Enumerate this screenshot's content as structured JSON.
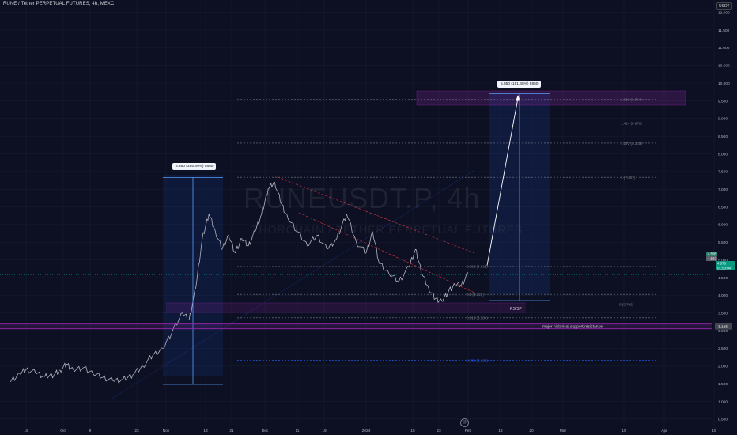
{
  "header": {
    "symbol_title": "RUNE / Tether PERPETUAL FUTURES, 4h, MEXC",
    "quote_currency": "USDT"
  },
  "watermark": {
    "symbol": "RUNEUSDT.P, 4h",
    "description": "THORCHAIN / TETHER PERPETUAL FUTURES"
  },
  "chart_data": {
    "type": "line",
    "title": "RUNE / Tether PERPETUAL FUTURES, 4h, MEXC",
    "xlabel": "",
    "ylabel": "",
    "y_axis_side": "right",
    "ylim": [
      0.25,
      12.15
    ],
    "y_ticks": [
      "12.000",
      "11.500",
      "11.000",
      "10.500",
      "10.000",
      "9.500",
      "9.000",
      "8.500",
      "8.000",
      "7.500",
      "7.000",
      "6.500",
      "6.000",
      "5.500",
      "5.000",
      "4.500",
      "4.000",
      "3.500",
      "3.000",
      "2.500",
      "2.000",
      "1.500",
      "1.000",
      "0.500"
    ],
    "x_ticks": [
      "19",
      "Oct",
      "9",
      "23",
      "Nov",
      "13",
      "21",
      "Dec",
      "11",
      "19",
      "2024",
      "15",
      "23",
      "Feb",
      "12",
      "20",
      "Mar",
      "19",
      "Apr",
      "15"
    ],
    "price_points": [
      {
        "x": "Sep 14",
        "y": 1.55
      },
      {
        "x": "Sep 17",
        "y": 1.78
      },
      {
        "x": "Sep 19",
        "y": 1.9
      },
      {
        "x": "Sep 22",
        "y": 1.82
      },
      {
        "x": "Sep 25",
        "y": 1.7
      },
      {
        "x": "Sep 28",
        "y": 1.75
      },
      {
        "x": "Sep 30",
        "y": 1.88
      },
      {
        "x": "Oct 2",
        "y": 2.05
      },
      {
        "x": "Oct 4",
        "y": 1.9
      },
      {
        "x": "Oct 7",
        "y": 1.95
      },
      {
        "x": "Oct 10",
        "y": 1.78
      },
      {
        "x": "Oct 13",
        "y": 1.68
      },
      {
        "x": "Oct 16",
        "y": 1.58
      },
      {
        "x": "Oct 19",
        "y": 1.62
      },
      {
        "x": "Oct 22",
        "y": 1.75
      },
      {
        "x": "Oct 25",
        "y": 2.0
      },
      {
        "x": "Oct 28",
        "y": 2.3
      },
      {
        "x": "Oct 31",
        "y": 2.5
      },
      {
        "x": "Nov 3",
        "y": 3.0
      },
      {
        "x": "Nov 6",
        "y": 3.5
      },
      {
        "x": "Nov 8",
        "y": 3.3
      },
      {
        "x": "Nov 10",
        "y": 4.2
      },
      {
        "x": "Nov 12",
        "y": 5.6
      },
      {
        "x": "Nov 14",
        "y": 6.3
      },
      {
        "x": "Nov 16",
        "y": 5.8
      },
      {
        "x": "Nov 18",
        "y": 5.3
      },
      {
        "x": "Nov 20",
        "y": 5.7
      },
      {
        "x": "Nov 22",
        "y": 5.2
      },
      {
        "x": "Nov 24",
        "y": 5.6
      },
      {
        "x": "Nov 26",
        "y": 5.4
      },
      {
        "x": "Nov 28",
        "y": 5.8
      },
      {
        "x": "Nov 30",
        "y": 6.3
      },
      {
        "x": "Dec 2",
        "y": 7.0
      },
      {
        "x": "Dec 4",
        "y": 7.2
      },
      {
        "x": "Dec 6",
        "y": 6.6
      },
      {
        "x": "Dec 8",
        "y": 6.2
      },
      {
        "x": "Dec 11",
        "y": 5.8
      },
      {
        "x": "Dec 14",
        "y": 5.4
      },
      {
        "x": "Dec 17",
        "y": 5.7
      },
      {
        "x": "Dec 20",
        "y": 5.3
      },
      {
        "x": "Dec 23",
        "y": 5.6
      },
      {
        "x": "Dec 26",
        "y": 6.3
      },
      {
        "x": "Dec 29",
        "y": 5.5
      },
      {
        "x": "Jan 1",
        "y": 5.2
      },
      {
        "x": "Jan 3",
        "y": 5.8
      },
      {
        "x": "Jan 5",
        "y": 4.9
      },
      {
        "x": "Jan 8",
        "y": 4.6
      },
      {
        "x": "Jan 11",
        "y": 4.4
      },
      {
        "x": "Jan 14",
        "y": 4.8
      },
      {
        "x": "Jan 16",
        "y": 5.3
      },
      {
        "x": "Jan 18",
        "y": 4.6
      },
      {
        "x": "Jan 20",
        "y": 4.2
      },
      {
        "x": "Jan 22",
        "y": 3.9
      },
      {
        "x": "Jan 24",
        "y": 3.85
      },
      {
        "x": "Jan 26",
        "y": 4.1
      },
      {
        "x": "Jan 28",
        "y": 4.3
      },
      {
        "x": "Jan 30",
        "y": 4.3
      },
      {
        "x": "Feb 1",
        "y": 4.62
      }
    ],
    "current_price": {
      "value": 4.576,
      "labels": [
        "4.595",
        "4.582",
        "4.576",
        "01:50:04"
      ]
    },
    "fib_levels": [
      {
        "text": "1.618 (9.544)",
        "value": 9.544,
        "color": "#787b86"
      },
      {
        "text": "1.414 (8.872)",
        "value": 8.872,
        "color": "#787b86"
      },
      {
        "text": "1.272 (8.303)",
        "value": 8.303,
        "color": "#787b86"
      },
      {
        "text": "1 (7.337)",
        "value": 7.337,
        "color": "#787b86"
      },
      {
        "text": "0.382 (4.815)",
        "value": 4.815,
        "color": "#787b86"
      },
      {
        "text": "0.5 (4.027)",
        "value": 4.027,
        "color": "#787b86"
      },
      {
        "text": "0 (3.746)",
        "value": 3.746,
        "color": "#787b86"
      },
      {
        "text": "0.618 (3.364)",
        "value": 3.364,
        "color": "#787b86"
      },
      {
        "text": "0.786 (2.163)",
        "value": 2.163,
        "color": "#2962ff"
      }
    ],
    "support_level": {
      "value": 3.12,
      "label": "major historical support/resistance",
      "axis_label": "3.125"
    },
    "rs_sp_label": "RS/SP",
    "measurements": [
      {
        "text": "5.850 (395.89%) 5850",
        "from": 1.48,
        "to": 7.33
      },
      {
        "text": "5.850 (151.35%) 5850",
        "from": 3.85,
        "to": 9.7
      }
    ],
    "colors": {
      "background": "#0c1022",
      "price": "#b2b5be",
      "channel": "#f23645",
      "fib": "#787b86",
      "support": "#9c27b0",
      "projection": "#2962ff",
      "arrow": "#ffffff"
    }
  }
}
